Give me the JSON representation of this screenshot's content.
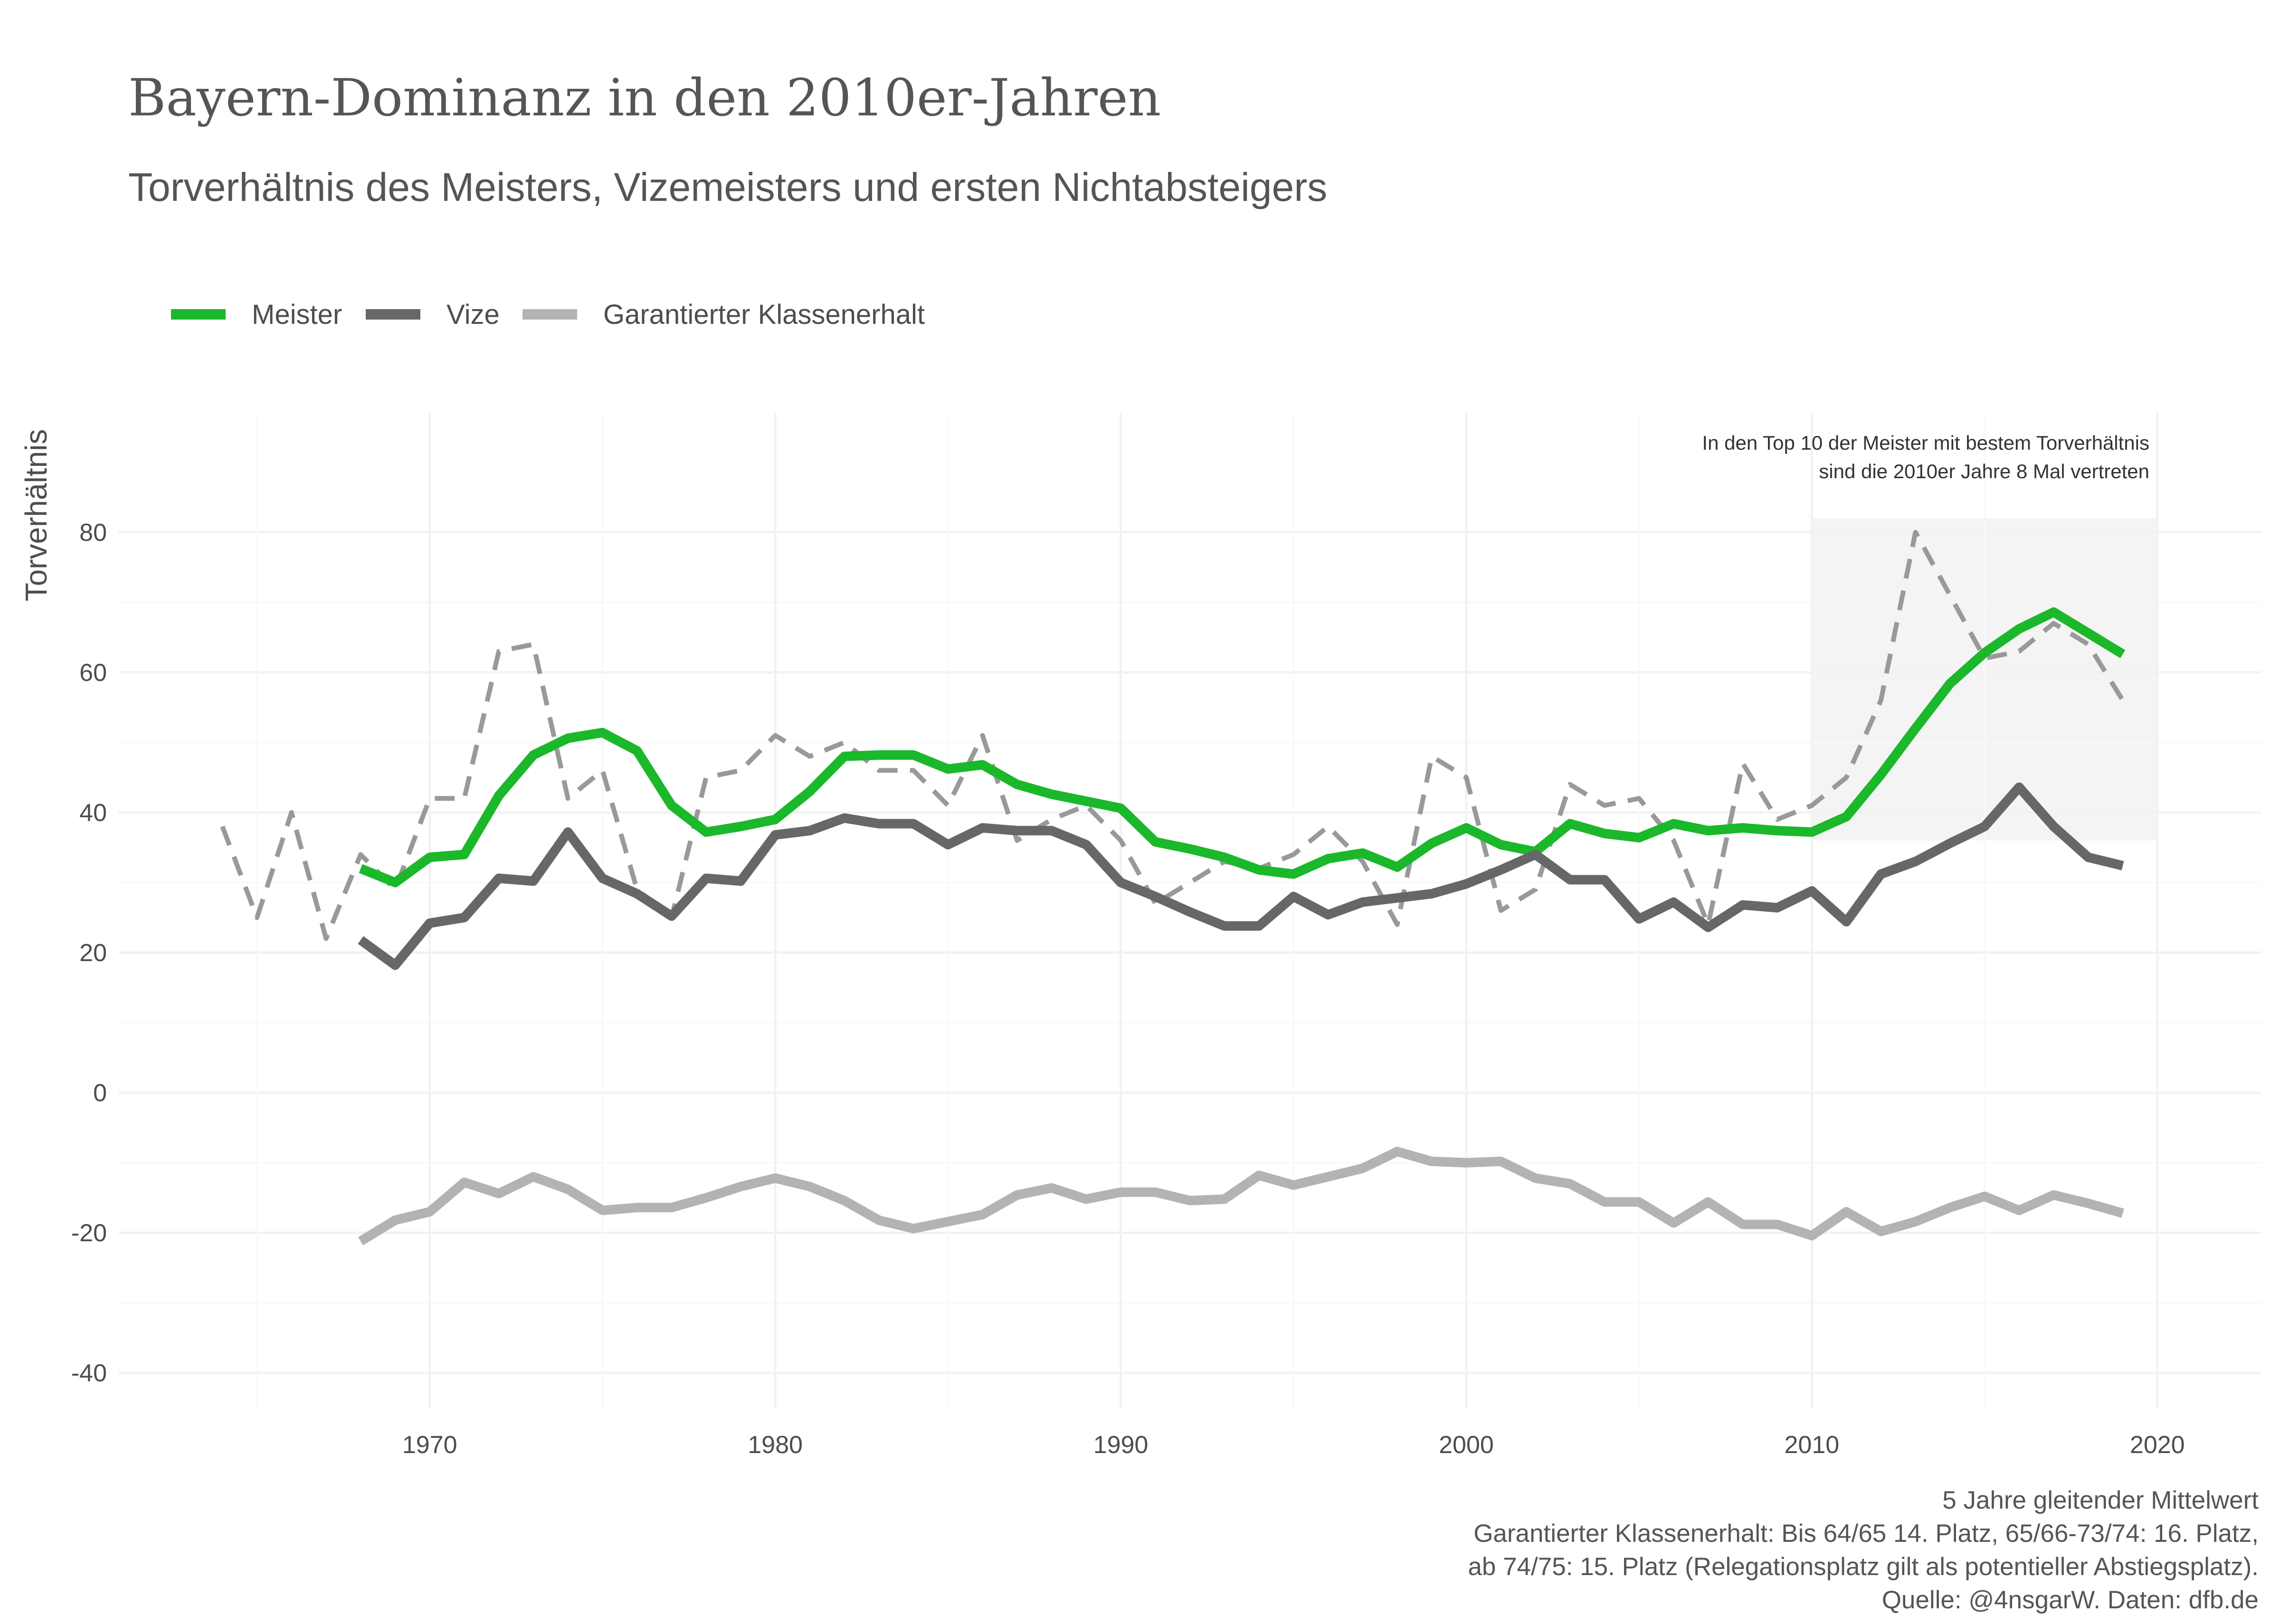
{
  "chart_data": {
    "type": "line",
    "title": "Bayern-Dominanz in den 2010er-Jahren",
    "subtitle": "Torverhältnis des Meisters, Vizemeisters und ersten Nichtabsteigers",
    "xlabel": "",
    "ylabel": "Torverhältnis",
    "xlim": [
      1961,
      2023
    ],
    "ylim": [
      -45,
      97
    ],
    "x_ticks": [
      1970,
      1980,
      1990,
      2000,
      2010,
      2020
    ],
    "y_ticks": [
      -40,
      -20,
      0,
      20,
      40,
      60,
      80
    ],
    "grid": true,
    "legend_position": "top-left",
    "legend": [
      {
        "label": "Meister",
        "color": "#1ab82a"
      },
      {
        "label": "Vize",
        "color": "#676767"
      },
      {
        "label": "Garantierter Klassenerhalt",
        "color": "#b3b3b3"
      }
    ],
    "highlight": {
      "x_range": [
        2010,
        2020
      ],
      "y_range": [
        36,
        82
      ],
      "color": "#f4f4f4"
    },
    "annotation": [
      "In den Top 10 der Meister mit bestem Torverhältnis",
      "sind die 2010er Jahre 8 Mal vertreten"
    ],
    "caption": [
      "5 Jahre gleitender Mittelwert",
      "Garantierter Klassenerhalt: Bis 64/65 14. Platz, 65/66-73/74: 16. Platz,",
      "ab 74/75: 15. Platz (Relegationsplatz gilt als potentieller Abstiegsplatz).",
      "Quelle: @4nsgarW. Daten: dfb.de"
    ],
    "series": [
      {
        "name": "Meister",
        "style": "solid",
        "color": "#1ab82a",
        "x": [
          1968,
          1969,
          1970,
          1971,
          1972,
          1973,
          1974,
          1975,
          1976,
          1977,
          1978,
          1979,
          1980,
          1981,
          1982,
          1983,
          1984,
          1985,
          1986,
          1987,
          1988,
          1989,
          1990,
          1991,
          1992,
          1993,
          1994,
          1995,
          1996,
          1997,
          1998,
          1999,
          2000,
          2001,
          2002,
          2003,
          2004,
          2005,
          2006,
          2007,
          2008,
          2009,
          2010,
          2011,
          2012,
          2013,
          2014,
          2015,
          2016,
          2017,
          2018,
          2019
        ],
        "y": [
          32,
          30,
          33.6,
          34,
          42.4,
          48.2,
          50.6,
          51.4,
          48.8,
          41,
          37.2,
          38,
          39,
          43,
          48,
          48.2,
          48.2,
          46.2,
          46.8,
          44,
          42.6,
          41.6,
          40.6,
          35.8,
          34.8,
          33.6,
          31.8,
          31.2,
          33.4,
          34.2,
          32.2,
          35.6,
          37.8,
          35.4,
          34.4,
          38.4,
          37,
          36.4,
          38.4,
          37.4,
          37.8,
          37.4,
          37.2,
          39.4,
          45.4,
          52,
          58.4,
          62.8,
          66.2,
          68.6,
          65.6,
          62.6
        ]
      },
      {
        "name": "Vize",
        "style": "solid",
        "color": "#676767",
        "x": [
          1968,
          1969,
          1970,
          1971,
          1972,
          1973,
          1974,
          1975,
          1976,
          1977,
          1978,
          1979,
          1980,
          1981,
          1982,
          1983,
          1984,
          1985,
          1986,
          1987,
          1988,
          1989,
          1990,
          1991,
          1992,
          1993,
          1994,
          1995,
          1996,
          1997,
          1998,
          1999,
          2000,
          2001,
          2002,
          2003,
          2004,
          2005,
          2006,
          2007,
          2008,
          2009,
          2010,
          2011,
          2012,
          2013,
          2014,
          2015,
          2016,
          2017,
          2018,
          2019
        ],
        "y": [
          21.8,
          18.2,
          24.2,
          25,
          30.6,
          30.2,
          37.2,
          30.6,
          28.4,
          25.2,
          30.6,
          30.2,
          36.8,
          37.4,
          39.2,
          38.4,
          38.4,
          35.4,
          37.8,
          37.4,
          37.4,
          35.4,
          30,
          28,
          25.8,
          23.8,
          23.8,
          28,
          25.4,
          27.2,
          27.8,
          28.4,
          29.8,
          31.8,
          34,
          30.4,
          30.4,
          24.8,
          27.2,
          23.6,
          26.8,
          26.4,
          28.8,
          24.4,
          31.2,
          33,
          35.6,
          38,
          43.6,
          38,
          33.6,
          32.4
        ]
      },
      {
        "name": "Garantierter Klassenerhalt",
        "style": "solid",
        "color": "#b3b3b3",
        "x": [
          1968,
          1969,
          1970,
          1971,
          1972,
          1973,
          1974,
          1975,
          1976,
          1977,
          1978,
          1979,
          1980,
          1981,
          1982,
          1983,
          1984,
          1985,
          1986,
          1987,
          1988,
          1989,
          1990,
          1991,
          1992,
          1993,
          1994,
          1995,
          1996,
          1997,
          1998,
          1999,
          2000,
          2001,
          2002,
          2003,
          2004,
          2005,
          2006,
          2007,
          2008,
          2009,
          2010,
          2011,
          2012,
          2013,
          2014,
          2015,
          2016,
          2017,
          2018,
          2019
        ],
        "y": [
          -21.2,
          -18.2,
          -17,
          -12.8,
          -14.4,
          -12,
          -13.8,
          -16.8,
          -16.4,
          -16.4,
          -15,
          -13.4,
          -12.2,
          -13.4,
          -15.4,
          -18.2,
          -19.4,
          -18.4,
          -17.4,
          -14.6,
          -13.6,
          -15.2,
          -14.2,
          -14.2,
          -15.4,
          -15.2,
          -11.8,
          -13.2,
          -12,
          -10.8,
          -8.4,
          -9.8,
          -10,
          -9.8,
          -12.2,
          -13,
          -15.6,
          -15.6,
          -18.6,
          -15.6,
          -18.8,
          -18.8,
          -20.4,
          -17,
          -19.8,
          -18.4,
          -16.4,
          -14.8,
          -16.8,
          -14.6,
          -15.8,
          -17.2
        ]
      },
      {
        "name": "",
        "style": "dashed",
        "color": "#999999",
        "x": [
          1964,
          1965,
          1966,
          1967,
          1968,
          1969,
          1970,
          1971,
          1972,
          1973,
          1974,
          1975,
          1976,
          1977,
          1978,
          1979,
          1980,
          1981,
          1982,
          1983,
          1984,
          1985,
          1986,
          1987,
          1988,
          1989,
          1990,
          1991,
          1992,
          1993,
          1994,
          1995,
          1996,
          1997,
          1998,
          1999,
          2000,
          2001,
          2002,
          2003,
          2004,
          2005,
          2006,
          2007,
          2008,
          2009,
          2010,
          2011,
          2012,
          2013,
          2014,
          2015,
          2016,
          2017,
          2018,
          2019
        ],
        "y": [
          38,
          25,
          40,
          22,
          34,
          29,
          42,
          42,
          63,
          64,
          42,
          46,
          29,
          25,
          45,
          46,
          51,
          48,
          50,
          46,
          46,
          41,
          51,
          36,
          39,
          41,
          36,
          27,
          30,
          33,
          32,
          34,
          38,
          33,
          24,
          48,
          45,
          26,
          29,
          44,
          41,
          42,
          36,
          24,
          47,
          39,
          41,
          45,
          56,
          80,
          71,
          62,
          63,
          67,
          64,
          56
        ]
      }
    ]
  }
}
